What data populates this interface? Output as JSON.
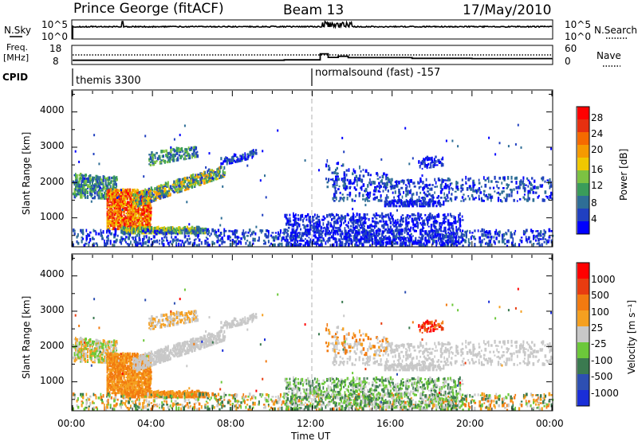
{
  "header": {
    "station": "Prince George (fitACF)",
    "beam": "Beam 13",
    "date": "17/May/2010"
  },
  "nsky_panel": {
    "label": "N.Sky",
    "right_label": "N.Search",
    "ticks_left": [
      "10^5",
      "10^0"
    ],
    "ticks_right": [
      "10^5",
      "10^0"
    ]
  },
  "freq_panel": {
    "label_line1": "Freq.",
    "label_line2": "[MHz]",
    "right_label": "Nave",
    "ticks_left": [
      "18",
      "8"
    ],
    "ticks_right": [
      "60",
      "0"
    ]
  },
  "cpid": {
    "label": "CPID",
    "modes": [
      {
        "name": "themis 3300",
        "start": "00:00"
      },
      {
        "name": "normalsound (fast) -157",
        "start": "12:00"
      }
    ]
  },
  "x_axis": {
    "label": "Time UT",
    "ticks": [
      "00:00",
      "04:00",
      "08:00",
      "12:00",
      "16:00",
      "20:00",
      "00:00"
    ],
    "range_hours": [
      0,
      24
    ]
  },
  "power_panel": {
    "ylabel": "Slant Range [km]",
    "yticks": [
      "4000",
      "3000",
      "2000",
      "1000"
    ],
    "colorbar_label": "Power [dB]",
    "colorbar_ticks": [
      "28",
      "24",
      "20",
      "16",
      "12",
      "8",
      "4"
    ]
  },
  "velocity_panel": {
    "ylabel": "Slant Range [km]",
    "yticks": [
      "4000",
      "3000",
      "2000",
      "1000"
    ],
    "colorbar_label": "Velocity [m s⁻¹]",
    "colorbar_ticks": [
      "1000",
      "500",
      "100",
      "25",
      "-25",
      "-100",
      "-500",
      "-1000"
    ]
  },
  "colors": {
    "power_scale": [
      "#0000ff",
      "#2040c0",
      "#2e6e96",
      "#3a9c5a",
      "#7cc242",
      "#f0c800",
      "#f59a00",
      "#f56a00",
      "#e63010",
      "#ff0000"
    ],
    "velocity_scale": [
      "#1a2ed8",
      "#2d4fb2",
      "#3b7a50",
      "#6cc83a",
      "#c8c8c8",
      "#f5a020",
      "#f27a10",
      "#e83c10",
      "#ff0000"
    ]
  },
  "chart_data": [
    {
      "type": "line",
      "title": "N.Sky / N.Search",
      "x_range_hours": [
        0,
        24
      ],
      "baseline": "10^5",
      "spikes_hours": [
        2.5,
        12.7,
        13.5
      ]
    },
    {
      "type": "line",
      "title": "Freq / Nave",
      "x_range_hours": [
        0,
        24
      ],
      "series": [
        {
          "name": "Freq.",
          "x": [
            0,
            10.6,
            12.0,
            12.4,
            12.8,
            13.3,
            13.8,
            17.0,
            20.0,
            24.0
          ],
          "y": [
            10.2,
            10.4,
            10.4,
            13.6,
            11.7,
            12.3,
            11.6,
            11.2,
            11.1,
            11.2
          ]
        }
      ],
      "dotted_level": 12,
      "ylim": [
        8,
        18
      ]
    },
    {
      "type": "heatmap",
      "title": "Power [dB]",
      "ylabel": "Slant Range [km]",
      "xlabel": "Time UT",
      "x_range_hours": [
        0,
        24
      ],
      "ylim_km": [
        180,
        4600
      ],
      "color_range": [
        0,
        30
      ]
    },
    {
      "type": "heatmap",
      "title": "Velocity [m s⁻¹]",
      "ylabel": "Slant Range [km]",
      "xlabel": "Time UT",
      "x_range_hours": [
        0,
        24
      ],
      "ylim_km": [
        180,
        4600
      ],
      "color_range": [
        -1000,
        1000
      ]
    }
  ]
}
